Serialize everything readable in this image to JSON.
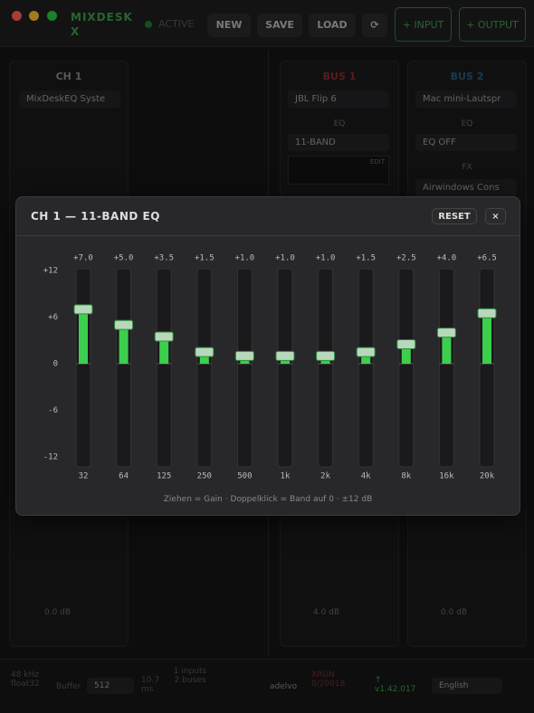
{
  "window": {
    "app_name": "MIXDESK X",
    "status": "ACTIVE",
    "buttons": [
      "NEW",
      "SAVE",
      "LOAD",
      "⟳"
    ],
    "add_buttons": [
      "+ INPUT",
      "+ OUTPUT"
    ]
  },
  "strips": [
    {
      "name": "CH 1",
      "device": "MixDeskEQ Syste",
      "level": "0.0 dB"
    },
    {
      "name": "BUS 1",
      "device": "JBL Flip 6",
      "eq_label": "EQ",
      "eq_mode": "11-BAND",
      "edit": "EDIT",
      "level": "4.0 dB"
    },
    {
      "name": "BUS 2",
      "device": "Mac mini-Lautspr",
      "eq_label": "EQ",
      "eq_mode": "EQ OFF",
      "fx_label": "FX",
      "fx": "Airwindows Cons",
      "level": "0.0 dB"
    }
  ],
  "status_bar": {
    "format": "48 kHz float32",
    "buffer_label": "Buffer",
    "buffer": "512",
    "latency": "10.7 ms",
    "io": "1 inputs 2 buses",
    "brand": "adelvo",
    "xrun": "XRUN 0/20018",
    "version": "↑ v1.42.017",
    "language": "English"
  },
  "eq_dialog": {
    "title": "CH 1 — 11-BAND EQ",
    "reset": "RESET",
    "close": "×",
    "hint": "Ziehen = Gain · Doppelklick = Band auf 0 · ±12 dB"
  },
  "chart_data": {
    "type": "bar",
    "categories": [
      "32",
      "64",
      "125",
      "250",
      "500",
      "1k",
      "2k",
      "4k",
      "8k",
      "16k",
      "20k"
    ],
    "values": [
      7,
      5,
      3.5,
      1.5,
      1,
      1,
      1,
      1.5,
      2.5,
      4,
      6.5
    ],
    "value_labels": [
      "+7.0",
      "+5.0",
      "+3.5",
      "+1.5",
      "+1.0",
      "+1.0",
      "+1.0",
      "+1.5",
      "+2.5",
      "+4.0",
      "+6.5"
    ],
    "ylim": [
      -12,
      12
    ],
    "yticks": [
      {
        "value": 12,
        "label": "+12"
      },
      {
        "value": 6,
        "label": "+6"
      },
      0,
      -6,
      -12
    ],
    "color": "#3ccf4e"
  }
}
